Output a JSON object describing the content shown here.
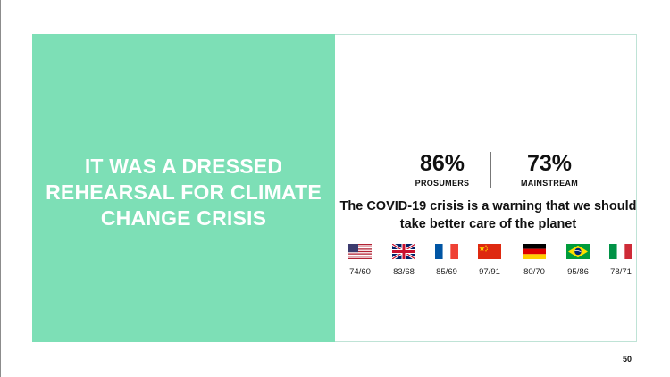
{
  "slide": {
    "headline_lines": [
      "IT WAS A DRESSED",
      "REHEARSAL FOR CLIMATE",
      "CHANGE CRISIS"
    ],
    "stats": {
      "prosumers": {
        "value": "86%",
        "label": "PROSUMERS"
      },
      "mainstream": {
        "value": "73%",
        "label": "MAINSTREAM"
      }
    },
    "statement_lines": [
      "The COVID-19 crisis is a warning that we should",
      "take better care of the planet"
    ],
    "countries": [
      {
        "flag": "us-flag-icon",
        "ratio": "74/60"
      },
      {
        "flag": "uk-flag-icon",
        "ratio": "83/68"
      },
      {
        "flag": "france-flag-icon",
        "ratio": "85/69"
      },
      {
        "flag": "china-flag-icon",
        "ratio": "97/91"
      },
      {
        "flag": "germany-flag-icon",
        "ratio": "80/70"
      },
      {
        "flag": "brazil-flag-icon",
        "ratio": "95/86"
      },
      {
        "flag": "italy-flag-icon",
        "ratio": "78/71"
      }
    ],
    "page_number": "50"
  },
  "colors": {
    "panel_green": "#7ddfb6",
    "headline_text": "#ffffff",
    "body_text": "#111111",
    "card_border": "#bfe3d6"
  }
}
